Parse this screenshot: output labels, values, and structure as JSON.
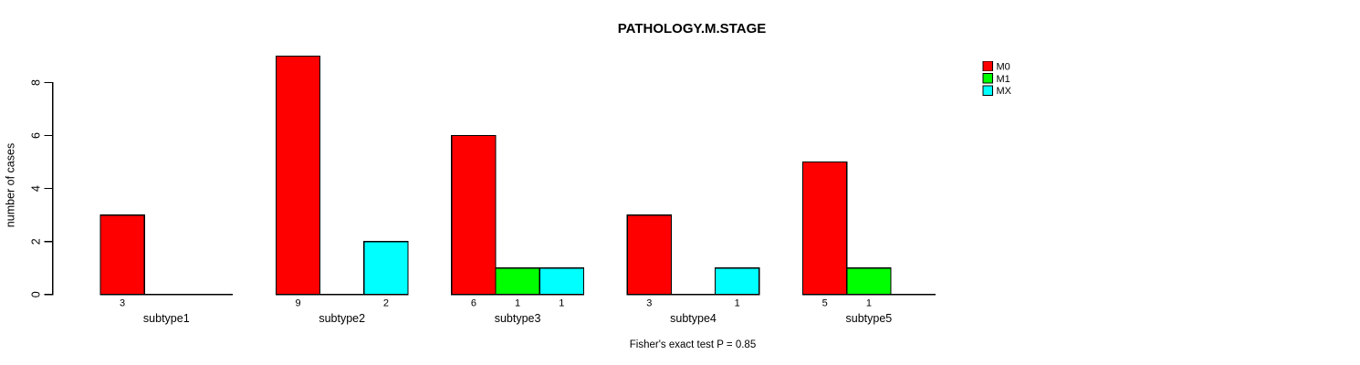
{
  "chart_data": {
    "type": "bar",
    "title": "PATHOLOGY.M.STAGE",
    "ylabel": "number of cases",
    "xlabel": "",
    "categories": [
      "subtype1",
      "subtype2",
      "subtype3",
      "subtype4",
      "subtype5"
    ],
    "series": [
      {
        "name": "M0",
        "color": "#FF0000",
        "values": [
          3,
          9,
          6,
          3,
          5
        ]
      },
      {
        "name": "M1",
        "color": "#00FF00",
        "values": [
          0,
          0,
          1,
          0,
          1
        ]
      },
      {
        "name": "MX",
        "color": "#00FFFF",
        "values": [
          0,
          2,
          1,
          1,
          0
        ]
      }
    ],
    "bar_value_labels_shown": true,
    "bar_value_labels_note": "count shown under each non-empty bar",
    "yticks": [
      0,
      2,
      4,
      6,
      8
    ],
    "ylim": [
      0,
      9
    ],
    "grid": false,
    "legend_position": "right",
    "bar_border_color": "#000000",
    "text_color": "#000000",
    "background_color": "#FFFFFF",
    "footnote": "Fisher's exact test P = 0.85"
  }
}
